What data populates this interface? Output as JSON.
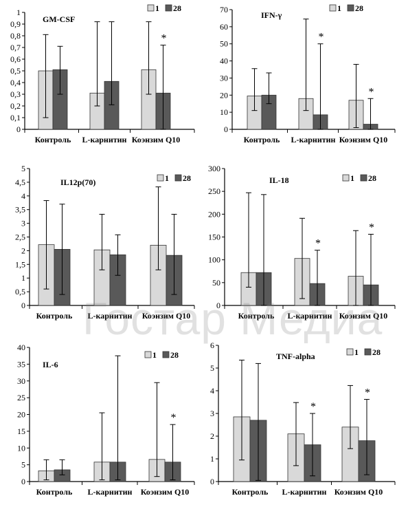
{
  "watermark": "Гостар Медиа",
  "colors": {
    "series_1": "#d9d9d9",
    "series_28": "#595959",
    "bar_border": "#333333"
  },
  "chart_data": [
    {
      "type": "bar",
      "title": "GM-CSF",
      "categories": [
        "Контроль",
        "L-карнитин",
        "Коэнзим Q10"
      ],
      "ylim": [
        0,
        1
      ],
      "yticks": [
        "0",
        "0,1",
        "0,2",
        "0,3",
        "0,4",
        "0,5",
        "0,6",
        "0,7",
        "0,8",
        "0,9",
        "1"
      ],
      "series": [
        {
          "name": "1",
          "values": [
            0.5,
            0.31,
            0.51
          ],
          "err_low": [
            0.1,
            0.2,
            0.3
          ],
          "err_high": [
            0.81,
            0.92,
            0.92
          ]
        },
        {
          "name": "28",
          "values": [
            0.51,
            0.41,
            0.31
          ],
          "err_low": [
            0.3,
            0.21,
            0.0
          ],
          "err_high": [
            0.71,
            0.92,
            0.72
          ]
        }
      ],
      "significant": [
        [
          false,
          false
        ],
        [
          false,
          false
        ],
        [
          false,
          true
        ]
      ]
    },
    {
      "type": "bar",
      "title": "IFN-γ",
      "categories": [
        "Контроль",
        "L-карнитин",
        "Коэнзим Q10"
      ],
      "ylim": [
        0,
        70
      ],
      "yticks": [
        "0",
        "10",
        "20",
        "30",
        "40",
        "50",
        "60",
        "70"
      ],
      "series": [
        {
          "name": "1",
          "values": [
            19.5,
            18.0,
            17.0
          ],
          "err_low": [
            11.0,
            11.0,
            1.0
          ],
          "err_high": [
            35.5,
            64.5,
            38.0
          ]
        },
        {
          "name": "28",
          "values": [
            20.0,
            8.5,
            3.0
          ],
          "err_low": [
            15.0,
            0.0,
            0.0
          ],
          "err_high": [
            33.0,
            50.0,
            18.0
          ]
        }
      ],
      "significant": [
        [
          false,
          false
        ],
        [
          false,
          true
        ],
        [
          false,
          true
        ]
      ]
    },
    {
      "type": "bar",
      "title": "IL12p(70)",
      "categories": [
        "Контроль",
        "L-карнитин",
        "Коэнзим Q10"
      ],
      "ylim": [
        0,
        5
      ],
      "yticks": [
        "0",
        "0,5",
        "1",
        "1,5",
        "2",
        "2,5",
        "3",
        "3,5",
        "4",
        "4,5",
        "5"
      ],
      "series": [
        {
          "name": "1",
          "values": [
            2.22,
            2.03,
            2.2
          ],
          "err_low": [
            0.6,
            1.3,
            1.3
          ],
          "err_high": [
            3.83,
            3.33,
            4.33
          ]
        },
        {
          "name": "28",
          "values": [
            2.05,
            1.85,
            1.83
          ],
          "err_low": [
            0.4,
            1.1,
            0.4
          ],
          "err_high": [
            3.7,
            2.58,
            3.33
          ]
        }
      ],
      "significant": [
        [
          false,
          false
        ],
        [
          false,
          false
        ],
        [
          false,
          false
        ]
      ]
    },
    {
      "type": "bar",
      "title": "IL-18",
      "categories": [
        "Контроль",
        "L-карнитин",
        "Коэнзим Q10"
      ],
      "ylim": [
        0,
        300
      ],
      "yticks": [
        "0",
        "50",
        "100",
        "150",
        "200",
        "250",
        "300"
      ],
      "series": [
        {
          "name": "1",
          "values": [
            72,
            103,
            64
          ],
          "err_low": [
            40,
            15,
            0
          ],
          "err_high": [
            247,
            191,
            164
          ]
        },
        {
          "name": "28",
          "values": [
            72,
            48,
            45
          ],
          "err_low": [
            0,
            0,
            0
          ],
          "err_high": [
            243,
            121,
            156
          ]
        }
      ],
      "significant": [
        [
          false,
          false
        ],
        [
          false,
          true
        ],
        [
          false,
          true
        ]
      ]
    },
    {
      "type": "bar",
      "title": "IL-6",
      "categories": [
        "Контроль",
        "L-карнитин",
        "Коэнзим Q10"
      ],
      "ylim": [
        0,
        40
      ],
      "yticks": [
        "0",
        "5",
        "10",
        "15",
        "20",
        "25",
        "30",
        "35",
        "40"
      ],
      "series": [
        {
          "name": "1",
          "values": [
            3.2,
            5.8,
            6.6
          ],
          "err_low": [
            0.5,
            0.5,
            1.5
          ],
          "err_high": [
            6.5,
            20.5,
            29.5
          ]
        },
        {
          "name": "28",
          "values": [
            3.5,
            5.8,
            5.8
          ],
          "err_low": [
            2.0,
            0.5,
            0.5
          ],
          "err_high": [
            6.5,
            37.5,
            17.0
          ]
        }
      ],
      "significant": [
        [
          false,
          false
        ],
        [
          false,
          false
        ],
        [
          false,
          true
        ]
      ]
    },
    {
      "type": "bar",
      "title": "TNF-alpha",
      "categories": [
        "Контроль",
        "L-карнитин",
        "Коэнзим Q10"
      ],
      "ylim": [
        0,
        6
      ],
      "yticks": [
        "0",
        "1",
        "2",
        "3",
        "4",
        "5",
        "6"
      ],
      "series": [
        {
          "name": "1",
          "values": [
            2.85,
            2.1,
            2.4
          ],
          "err_low": [
            0.95,
            0.7,
            1.45
          ],
          "err_high": [
            5.35,
            3.48,
            4.23
          ]
        },
        {
          "name": "28",
          "values": [
            2.7,
            1.62,
            1.8
          ],
          "err_low": [
            0.05,
            0.25,
            0.3
          ],
          "err_high": [
            5.2,
            3.0,
            3.62
          ]
        }
      ],
      "significant": [
        [
          false,
          false
        ],
        [
          false,
          true
        ],
        [
          false,
          true
        ]
      ]
    }
  ]
}
